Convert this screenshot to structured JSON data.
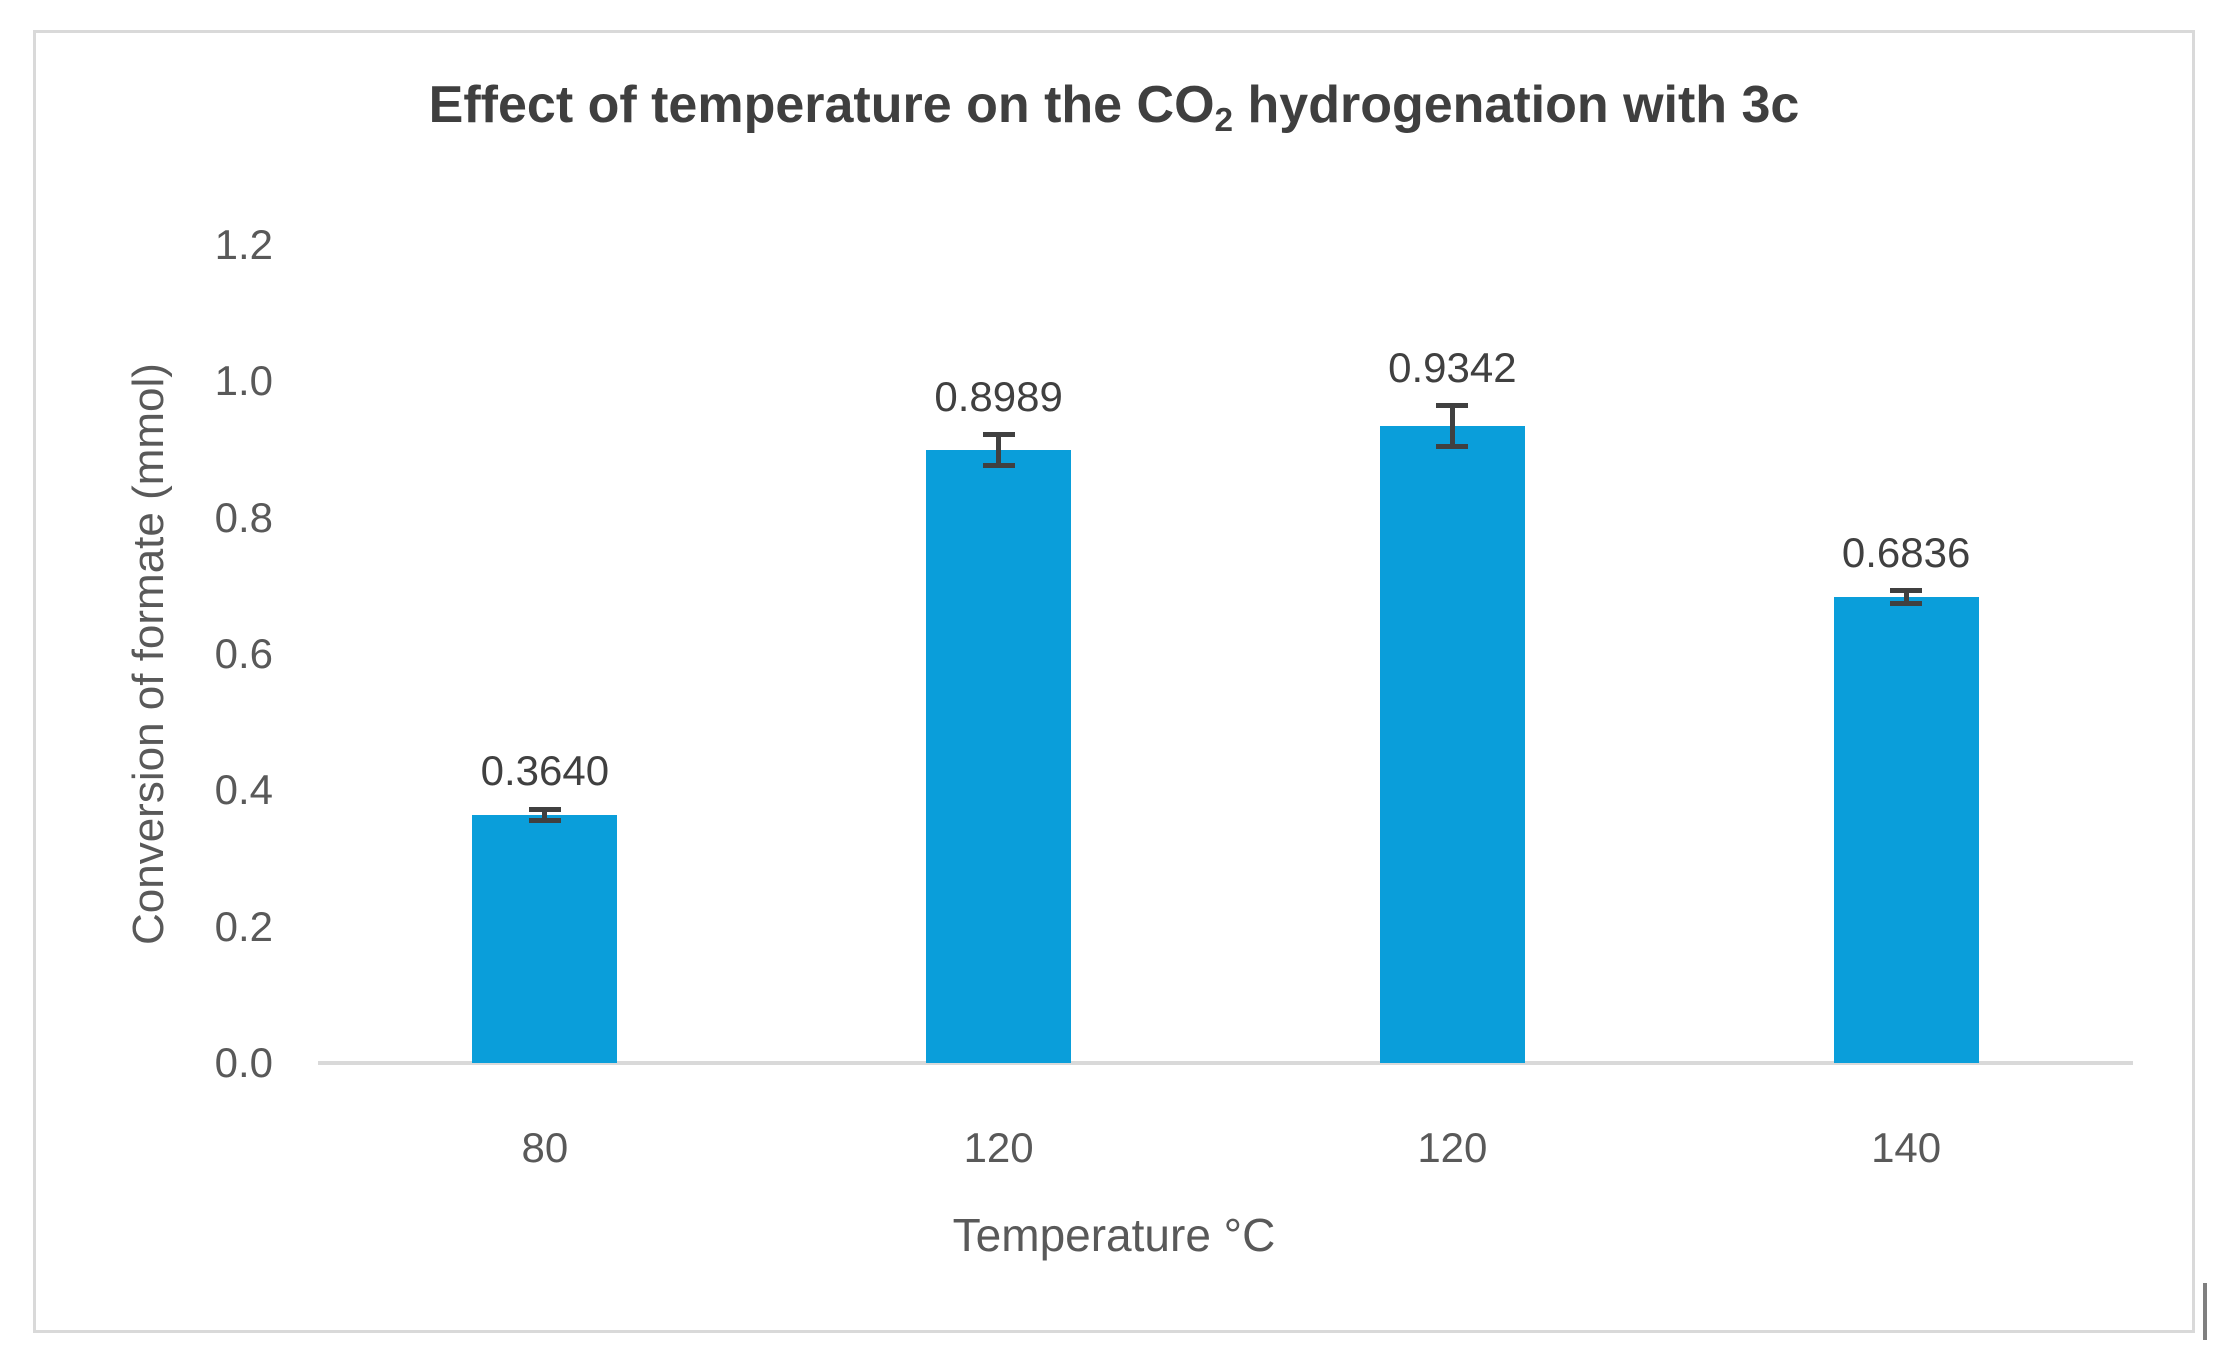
{
  "chart_data": {
    "type": "bar",
    "title": "Effect of temperature on the CO2 hydrogenation with 3c",
    "title_parts": {
      "pre_sub": "Effect of temperature on the CO",
      "sub": "2",
      "post_sub": " hydrogenation with 3c"
    },
    "categories": [
      "80",
      "120",
      "120",
      "140"
    ],
    "values": [
      0.364,
      0.8989,
      0.9342,
      0.6836
    ],
    "value_labels": [
      "0.3640",
      "0.8989",
      "0.9342",
      "0.6836"
    ],
    "errors_est": [
      0.008,
      0.023,
      0.03,
      0.009
    ],
    "xlabel": "Temperature °C",
    "ylabel": "Conversion of formate (mmol)",
    "ylim": [
      0,
      1.2
    ],
    "ytick_step": 0.2,
    "yticks": [
      "1.2",
      "1.0",
      "0.8",
      "0.6",
      "0.4",
      "0.2",
      "0.0"
    ],
    "grid": false,
    "legend": "none",
    "colors": {
      "bar": "#0A9EDA",
      "error_bar": "#404040",
      "axis_line": "#D9D9D9",
      "frame_border": "#D9D9D9",
      "axis_text": "#595959",
      "data_label_text": "#404040",
      "title_text": "#3F3F3F"
    }
  }
}
